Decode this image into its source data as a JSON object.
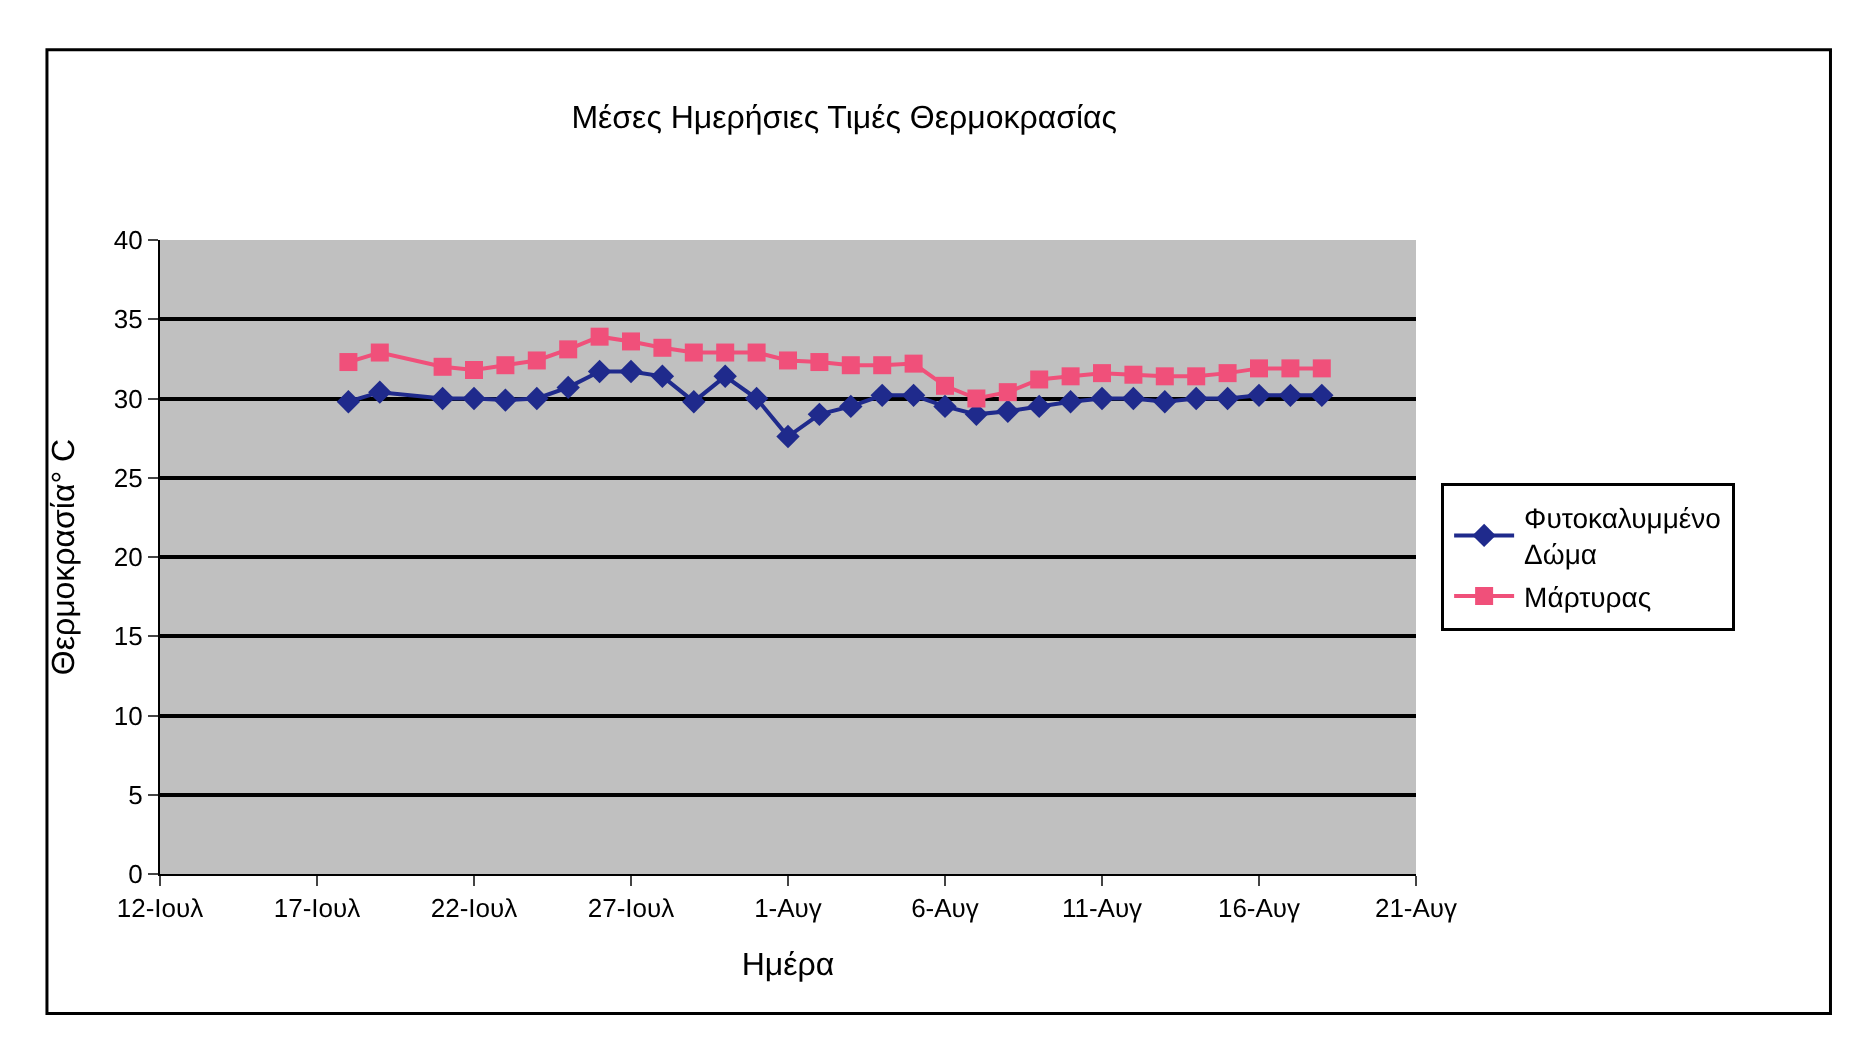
{
  "chart_data": {
    "type": "line",
    "title": "Μέσες Ημερήσιες Τιμές Θερμοκρασίας",
    "xlabel": "Ημέρα",
    "ylabel": "Θερμοκρασία° C",
    "x": [
      "--07-18",
      "--07-19",
      "--07-21",
      "--07-22",
      "--07-23",
      "--07-24",
      "--07-25",
      "--07-26",
      "--07-27",
      "--07-28",
      "--07-29",
      "--07-30",
      "--07-31",
      "--08-01",
      "--08-02",
      "--08-03",
      "--08-04",
      "--08-05",
      "--08-06",
      "--08-07",
      "--08-08",
      "--08-09",
      "--08-10",
      "--08-11",
      "--08-12",
      "--08-13",
      "--08-14",
      "--08-15",
      "--08-16",
      "--08-17",
      "--08-18"
    ],
    "series": [
      {
        "name": "Φυτοκαλυμμένο Δώμα",
        "color": "#1f2a8c",
        "marker": "diamond",
        "values": [
          29.8,
          30.4,
          30.0,
          30.0,
          29.9,
          30.0,
          30.7,
          31.7,
          31.7,
          31.4,
          29.8,
          31.4,
          30.0,
          27.6,
          29.0,
          29.5,
          30.2,
          30.2,
          29.5,
          29.0,
          29.2,
          29.5,
          29.8,
          30.0,
          30.0,
          29.8,
          30.0,
          30.0,
          30.2,
          30.2,
          30.2
        ]
      },
      {
        "name": "Μάρτυρας",
        "color": "#f0507a",
        "marker": "square",
        "values": [
          32.3,
          32.9,
          32.0,
          31.8,
          32.1,
          32.4,
          33.1,
          33.9,
          33.6,
          33.2,
          32.9,
          32.9,
          32.9,
          32.4,
          32.3,
          32.1,
          32.1,
          32.2,
          30.8,
          30.0,
          30.4,
          31.2,
          31.4,
          31.6,
          31.5,
          31.4,
          31.4,
          31.6,
          31.9,
          31.9,
          31.9
        ]
      }
    ],
    "xlim": [
      "--07-12",
      "--08-21"
    ],
    "xticks": [
      {
        "value": "--07-12",
        "label": "12-Ιουλ"
      },
      {
        "value": "--07-17",
        "label": "17-Ιουλ"
      },
      {
        "value": "--07-22",
        "label": "22-Ιουλ"
      },
      {
        "value": "--07-27",
        "label": "27-Ιουλ"
      },
      {
        "value": "--08-01",
        "label": "1-Αυγ"
      },
      {
        "value": "--08-06",
        "label": "6-Αυγ"
      },
      {
        "value": "--08-11",
        "label": "11-Αυγ"
      },
      {
        "value": "--08-16",
        "label": "16-Αυγ"
      },
      {
        "value": "--08-21",
        "label": "21-Αυγ"
      }
    ],
    "ylim": [
      0,
      40
    ],
    "yticks": [
      0,
      5,
      10,
      15,
      20,
      25,
      30,
      35,
      40
    ],
    "grid": "y",
    "legend": "right",
    "line_style": "solid"
  }
}
